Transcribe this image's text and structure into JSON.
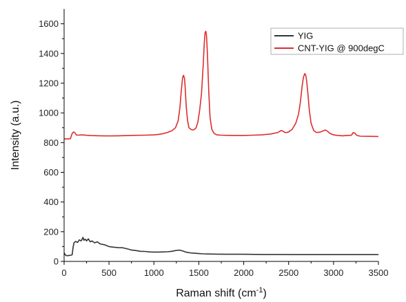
{
  "chart_data": {
    "type": "line",
    "xlabel": "Raman shift (cm",
    "xlabel_sup": "-1",
    "xlabel_end": ")",
    "ylabel": "Intensity (a.u.)",
    "xlim": [
      0,
      3500
    ],
    "ylim": [
      0,
      1700
    ],
    "xticks": [
      0,
      500,
      1000,
      1500,
      2000,
      2500,
      3000,
      3500
    ],
    "yticks": [
      0,
      200,
      400,
      600,
      800,
      1000,
      1200,
      1400,
      1600
    ],
    "grid": false,
    "legend_position": "top-right",
    "series": [
      {
        "name": "YIG",
        "color": "#333333",
        "x": [
          0,
          15,
          30,
          45,
          60,
          75,
          90,
          100,
          110,
          130,
          150,
          170,
          190,
          210,
          220,
          235,
          250,
          270,
          290,
          310,
          340,
          370,
          400,
          450,
          500,
          550,
          600,
          650,
          700,
          750,
          800,
          850,
          900,
          950,
          1000,
          1050,
          1100,
          1150,
          1200,
          1250,
          1280,
          1300,
          1330,
          1360,
          1400,
          1450,
          1500,
          1550,
          1600,
          1700,
          1800,
          1900,
          2000,
          2200,
          2400,
          2600,
          2800,
          3000,
          3200,
          3400,
          3500
        ],
        "y": [
          58,
          42,
          38,
          40,
          40,
          42,
          45,
          95,
          125,
          135,
          128,
          145,
          138,
          162,
          142,
          150,
          138,
          152,
          132,
          138,
          125,
          132,
          118,
          112,
          100,
          96,
          93,
          92,
          85,
          77,
          73,
          68,
          67,
          64,
          63,
          63,
          64,
          65,
          68,
          74,
          76,
          74,
          68,
          62,
          58,
          55,
          53,
          51,
          50,
          49,
          48,
          48,
          48,
          47,
          47,
          46,
          46,
          46,
          46,
          46,
          46
        ]
      },
      {
        "name": "CNT-YIG @ 900degC",
        "color": "#dd2c2c",
        "x": [
          0,
          40,
          70,
          90,
          105,
          120,
          135,
          160,
          200,
          300,
          400,
          500,
          600,
          700,
          800,
          900,
          1000,
          1050,
          1100,
          1150,
          1200,
          1240,
          1270,
          1290,
          1305,
          1320,
          1330,
          1342,
          1350,
          1360,
          1375,
          1390,
          1410,
          1430,
          1450,
          1470,
          1490,
          1510,
          1530,
          1550,
          1560,
          1570,
          1578,
          1586,
          1596,
          1610,
          1625,
          1645,
          1670,
          1700,
          1750,
          1800,
          1900,
          2000,
          2100,
          2200,
          2300,
          2380,
          2420,
          2440,
          2460,
          2480,
          2500,
          2540,
          2580,
          2610,
          2630,
          2650,
          2665,
          2680,
          2690,
          2700,
          2715,
          2730,
          2750,
          2780,
          2810,
          2850,
          2880,
          2910,
          2930,
          2960,
          3000,
          3050,
          3100,
          3150,
          3200,
          3220,
          3240,
          3260,
          3300,
          3400,
          3500
        ],
        "y": [
          825,
          825,
          826,
          862,
          872,
          866,
          852,
          850,
          852,
          847,
          846,
          845,
          846,
          847,
          849,
          850,
          852,
          855,
          860,
          868,
          880,
          900,
          948,
          1040,
          1150,
          1240,
          1253,
          1230,
          1150,
          1040,
          948,
          900,
          890,
          885,
          888,
          900,
          940,
          1020,
          1130,
          1330,
          1460,
          1540,
          1550,
          1520,
          1400,
          1150,
          970,
          890,
          862,
          852,
          850,
          849,
          848,
          848,
          850,
          852,
          858,
          868,
          882,
          875,
          868,
          868,
          872,
          890,
          930,
          990,
          1070,
          1180,
          1240,
          1265,
          1255,
          1220,
          1130,
          1020,
          930,
          880,
          868,
          870,
          878,
          885,
          878,
          862,
          852,
          848,
          846,
          848,
          850,
          868,
          862,
          848,
          843,
          842,
          841
        ]
      }
    ]
  }
}
